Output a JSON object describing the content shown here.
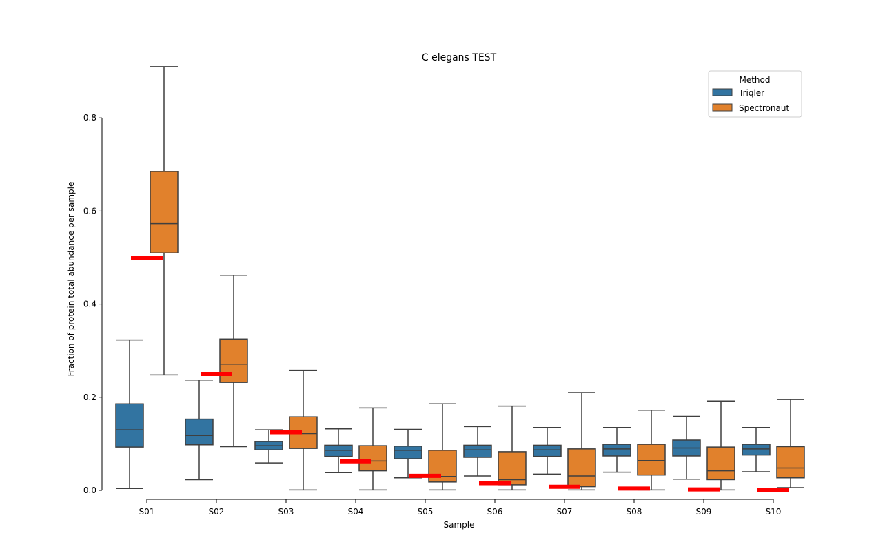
{
  "chart_data": {
    "type": "box",
    "title": "C elegans TEST",
    "xlabel": "Sample",
    "ylabel": "Fraction of protein total abundance per sample",
    "ylim": [
      -0.02,
      0.91
    ],
    "yticks": [
      0.0,
      0.2,
      0.4,
      0.6,
      0.8
    ],
    "ytick_labels": [
      "0.0",
      "0.2",
      "0.4",
      "0.6",
      "0.8"
    ],
    "categories": [
      "S01",
      "S02",
      "S03",
      "S04",
      "S05",
      "S06",
      "S07",
      "S08",
      "S09",
      "S10"
    ],
    "legend": {
      "title": "Method",
      "position": "top-right"
    },
    "series": [
      {
        "name": "Triqler",
        "color": "#3274a1",
        "boxes": [
          {
            "whislo": 0.004,
            "q1": 0.093,
            "med": 0.13,
            "q3": 0.186,
            "whishi": 0.323
          },
          {
            "whislo": 0.023,
            "q1": 0.098,
            "med": 0.118,
            "q3": 0.153,
            "whishi": 0.237
          },
          {
            "whislo": 0.059,
            "q1": 0.087,
            "med": 0.096,
            "q3": 0.105,
            "whishi": 0.13
          },
          {
            "whislo": 0.038,
            "q1": 0.073,
            "med": 0.086,
            "q3": 0.097,
            "whishi": 0.132
          },
          {
            "whislo": 0.027,
            "q1": 0.068,
            "med": 0.086,
            "q3": 0.095,
            "whishi": 0.131
          },
          {
            "whislo": 0.031,
            "q1": 0.071,
            "med": 0.087,
            "q3": 0.097,
            "whishi": 0.137
          },
          {
            "whislo": 0.035,
            "q1": 0.073,
            "med": 0.087,
            "q3": 0.097,
            "whishi": 0.135
          },
          {
            "whislo": 0.039,
            "q1": 0.074,
            "med": 0.089,
            "q3": 0.099,
            "whishi": 0.135
          },
          {
            "whislo": 0.024,
            "q1": 0.074,
            "med": 0.091,
            "q3": 0.108,
            "whishi": 0.159
          },
          {
            "whislo": 0.04,
            "q1": 0.076,
            "med": 0.089,
            "q3": 0.099,
            "whishi": 0.135
          }
        ]
      },
      {
        "name": "Spectronaut",
        "color": "#e1812c",
        "boxes": [
          {
            "whislo": 0.248,
            "q1": 0.51,
            "med": 0.573,
            "q3": 0.685,
            "whishi": 0.91
          },
          {
            "whislo": 0.094,
            "q1": 0.232,
            "med": 0.271,
            "q3": 0.325,
            "whishi": 0.462
          },
          {
            "whislo": 0.001,
            "q1": 0.09,
            "med": 0.122,
            "q3": 0.158,
            "whishi": 0.258
          },
          {
            "whislo": 0.001,
            "q1": 0.042,
            "med": 0.063,
            "q3": 0.096,
            "whishi": 0.177
          },
          {
            "whislo": 0.001,
            "q1": 0.018,
            "med": 0.03,
            "q3": 0.086,
            "whishi": 0.186
          },
          {
            "whislo": 0.001,
            "q1": 0.012,
            "med": 0.023,
            "q3": 0.083,
            "whishi": 0.181
          },
          {
            "whislo": 0.001,
            "q1": 0.008,
            "med": 0.031,
            "q3": 0.089,
            "whishi": 0.21
          },
          {
            "whislo": 0.001,
            "q1": 0.033,
            "med": 0.064,
            "q3": 0.099,
            "whishi": 0.172
          },
          {
            "whislo": 0.001,
            "q1": 0.023,
            "med": 0.042,
            "q3": 0.093,
            "whishi": 0.192
          },
          {
            "whislo": 0.006,
            "q1": 0.027,
            "med": 0.048,
            "q3": 0.094,
            "whishi": 0.195
          }
        ]
      }
    ],
    "reference_lines": {
      "color": "#ff0000",
      "values": [
        0.5,
        0.25,
        0.125,
        0.0625,
        0.03125,
        0.0156,
        0.0078,
        0.0039,
        0.00195,
        0.00098
      ]
    },
    "grid": false
  }
}
